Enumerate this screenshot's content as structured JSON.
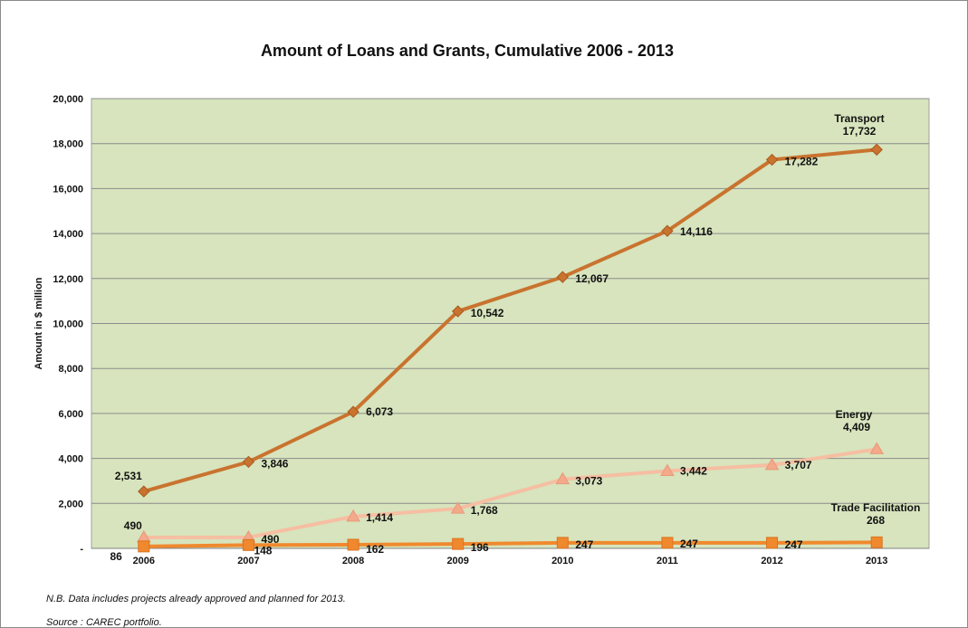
{
  "chart_data": {
    "type": "line",
    "title": "Amount of Loans and Grants, Cumulative 2006 - 2013",
    "ylabel": "Amount in $ million",
    "xlabel": "",
    "categories": [
      "2006",
      "2007",
      "2008",
      "2009",
      "2010",
      "2011",
      "2012",
      "2013"
    ],
    "ylim": [
      0,
      20000
    ],
    "yticks": [
      0,
      2000,
      4000,
      6000,
      8000,
      10000,
      12000,
      14000,
      16000,
      18000,
      20000
    ],
    "ytick_labels": [
      "-",
      "2,000",
      "4,000",
      "6,000",
      "8,000",
      "10,000",
      "12,000",
      "14,000",
      "16,000",
      "18,000",
      "20,000"
    ],
    "grid": true,
    "plot_background": "#d7e4bd",
    "series": [
      {
        "name": "Transport",
        "end_label": [
          "Transport",
          "17,732"
        ],
        "color": "#c9732f",
        "marker": "diamond",
        "values": [
          2531,
          3846,
          6073,
          10542,
          12067,
          14116,
          17282,
          17732
        ],
        "data_labels": [
          "2,531",
          "3,846",
          "6,073",
          "10,542",
          "12,067",
          "14,116",
          "17,282",
          ""
        ]
      },
      {
        "name": "Energy",
        "end_label": [
          "Energy",
          "4,409"
        ],
        "color": "#f6bea2",
        "marker": "triangle",
        "values": [
          490,
          490,
          1414,
          1768,
          3073,
          3442,
          3707,
          4409
        ],
        "data_labels": [
          "490",
          "490",
          "1,414",
          "1,768",
          "3,073",
          "3,442",
          "3,707",
          ""
        ]
      },
      {
        "name": "Trade Facilitation",
        "end_label": [
          "Trade Facilitation",
          "268"
        ],
        "color": "#f0892e",
        "marker": "square",
        "values": [
          86,
          148,
          162,
          196,
          247,
          247,
          247,
          268
        ],
        "data_labels": [
          "86",
          "148",
          "162",
          "196",
          "247",
          "247",
          "247",
          ""
        ]
      }
    ]
  },
  "footnote": "N.B. Data includes projects already approved and planned for 2013.",
  "source": "Source : CAREC portfolio."
}
